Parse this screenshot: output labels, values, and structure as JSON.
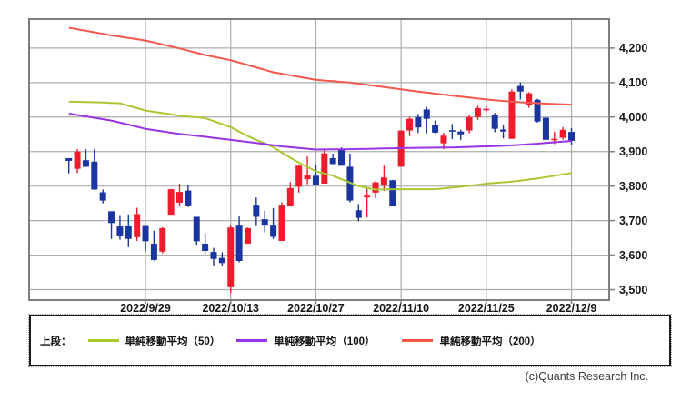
{
  "chart_data": {
    "type": "candlestick",
    "title": "",
    "y_axis": {
      "ticks": [
        "4,200",
        "4,100",
        "4,000",
        "3,900",
        "3,800",
        "3,700",
        "3,600",
        "3,500"
      ],
      "values": [
        4200,
        4100,
        4000,
        3900,
        3800,
        3700,
        3600,
        3500
      ],
      "range": [
        3468,
        4282
      ],
      "grid": true
    },
    "x_axis": {
      "ticks": [
        {
          "label": "2022/9/29",
          "index": 9
        },
        {
          "label": "2022/10/13",
          "index": 19
        },
        {
          "label": "2022/10/27",
          "index": 29
        },
        {
          "label": "2022/11/10",
          "index": 39
        },
        {
          "label": "2022/11/25",
          "index": 49
        },
        {
          "label": "2022/12/9",
          "index": 59
        }
      ],
      "grid": true
    },
    "candles": {
      "dates": [
        "2022/9/16",
        "2022/9/19",
        "2022/9/20",
        "2022/9/21",
        "2022/9/22",
        "2022/9/23",
        "2022/9/26",
        "2022/9/27",
        "2022/9/28",
        "2022/9/29",
        "2022/9/30",
        "2022/10/3",
        "2022/10/4",
        "2022/10/5",
        "2022/10/6",
        "2022/10/7",
        "2022/10/10",
        "2022/10/11",
        "2022/10/12",
        "2022/10/13",
        "2022/10/14",
        "2022/10/17",
        "2022/10/18",
        "2022/10/19",
        "2022/10/20",
        "2022/10/21",
        "2022/10/24",
        "2022/10/25",
        "2022/10/26",
        "2022/10/27",
        "2022/10/28",
        "2022/10/31",
        "2022/11/1",
        "2022/11/2",
        "2022/11/3",
        "2022/11/4",
        "2022/11/7",
        "2022/11/8",
        "2022/11/9",
        "2022/11/10",
        "2022/11/11",
        "2022/11/14",
        "2022/11/15",
        "2022/11/16",
        "2022/11/17",
        "2022/11/18",
        "2022/11/21",
        "2022/11/22",
        "2022/11/23",
        "2022/11/25",
        "2022/11/28",
        "2022/11/29",
        "2022/11/30",
        "2022/12/1",
        "2022/12/2",
        "2022/12/5",
        "2022/12/6",
        "2022/12/7",
        "2022/12/8",
        "2022/12/9"
      ],
      "ohlc": [
        [
          3881,
          3881,
          3837,
          3873
        ],
        [
          3850,
          3907,
          3838,
          3900
        ],
        [
          3875,
          3907,
          3855,
          3856
        ],
        [
          3871,
          3907,
          3789,
          3790
        ],
        [
          3782,
          3790,
          3750,
          3758
        ],
        [
          3727,
          3727,
          3647,
          3693
        ],
        [
          3683,
          3716,
          3645,
          3655
        ],
        [
          3686,
          3718,
          3623,
          3647
        ],
        [
          3652,
          3737,
          3641,
          3719
        ],
        [
          3687,
          3687,
          3610,
          3640
        ],
        [
          3633,
          3671,
          3584,
          3586
        ],
        [
          3610,
          3681,
          3605,
          3678
        ],
        [
          3717,
          3791,
          3717,
          3791
        ],
        [
          3752,
          3807,
          3742,
          3783
        ],
        [
          3787,
          3804,
          3739,
          3744
        ],
        [
          3711,
          3711,
          3630,
          3640
        ],
        [
          3633,
          3662,
          3604,
          3612
        ],
        [
          3609,
          3621,
          3569,
          3589
        ],
        [
          3592,
          3608,
          3568,
          3577
        ],
        [
          3507,
          3688,
          3490,
          3680
        ],
        [
          3688,
          3712,
          3579,
          3583
        ],
        [
          3633,
          3680,
          3633,
          3678
        ],
        [
          3746,
          3767,
          3687,
          3711
        ],
        [
          3704,
          3728,
          3666,
          3688
        ],
        [
          3688,
          3736,
          3647,
          3653
        ],
        [
          3641,
          3753,
          3641,
          3746
        ],
        [
          3741,
          3811,
          3741,
          3794
        ],
        [
          3798,
          3862,
          3781,
          3859
        ],
        [
          3820,
          3886,
          3805,
          3833
        ],
        [
          3830,
          3860,
          3803,
          3803
        ],
        [
          3807,
          3905,
          3807,
          3895
        ],
        [
          3881,
          3894,
          3863,
          3864
        ],
        [
          3908,
          3912,
          3859,
          3859
        ],
        [
          3856,
          3894,
          3753,
          3758
        ],
        [
          3730,
          3748,
          3698,
          3708
        ],
        [
          3767,
          3796,
          3709,
          3772
        ],
        [
          3781,
          3814,
          3765,
          3811
        ],
        [
          3803,
          3859,
          3786,
          3825
        ],
        [
          3817,
          3818,
          3744,
          3741
        ],
        [
          3856,
          3961,
          3856,
          3961
        ],
        [
          3961,
          4001,
          3945,
          3995
        ],
        [
          4000,
          4009,
          3954,
          3970
        ],
        [
          4022,
          4029,
          3953,
          3995
        ],
        [
          3977,
          3990,
          3953,
          3955
        ],
        [
          3924,
          3954,
          3907,
          3946
        ],
        [
          3962,
          3980,
          3936,
          3958
        ],
        [
          3958,
          3963,
          3934,
          3950
        ],
        [
          3961,
          4006,
          3953,
          4000
        ],
        [
          4000,
          4033,
          3992,
          4026
        ],
        [
          4020,
          4034,
          4014,
          4024
        ],
        [
          4005,
          4012,
          3956,
          3966
        ],
        [
          3964,
          3977,
          3938,
          3958
        ],
        [
          3937,
          4080,
          3937,
          4074
        ],
        [
          4090,
          4100,
          4051,
          4074
        ],
        [
          4034,
          4072,
          4027,
          4069
        ],
        [
          4050,
          4053,
          3984,
          3987
        ],
        [
          3998,
          4001,
          3934,
          3934
        ],
        [
          3933,
          3957,
          3922,
          3937
        ],
        [
          3940,
          3971,
          3935,
          3963
        ],
        [
          3957,
          3968,
          3920,
          3931
        ]
      ]
    },
    "moving_averages": [
      {
        "name": "単純移動平均（200）",
        "period": 200,
        "color": "#f7564b",
        "data_name": "sma200-line",
        "points": [
          [
            0,
            4259
          ],
          [
            5,
            4237
          ],
          [
            9,
            4222
          ],
          [
            13,
            4199
          ],
          [
            16,
            4180
          ],
          [
            19,
            4165
          ],
          [
            24,
            4130
          ],
          [
            29,
            4108
          ],
          [
            33,
            4100
          ],
          [
            37,
            4087
          ],
          [
            41,
            4074
          ],
          [
            45,
            4062
          ],
          [
            49,
            4051
          ],
          [
            53,
            4043
          ],
          [
            56,
            4039
          ],
          [
            59,
            4036
          ]
        ]
      },
      {
        "name": "単純移動平均（50）",
        "period": 50,
        "color": "#a8c832",
        "data_name": "sma50-line",
        "points": [
          [
            0,
            4045
          ],
          [
            3,
            4043
          ],
          [
            6,
            4040
          ],
          [
            9,
            4019
          ],
          [
            13,
            4004
          ],
          [
            16,
            3997
          ],
          [
            19,
            3971
          ],
          [
            21,
            3945
          ],
          [
            22,
            3934
          ],
          [
            24,
            3913
          ],
          [
            25,
            3897
          ],
          [
            27,
            3868
          ],
          [
            29,
            3843
          ],
          [
            31,
            3830
          ],
          [
            34,
            3800
          ],
          [
            36,
            3790
          ],
          [
            39,
            3791
          ],
          [
            43,
            3791
          ],
          [
            46,
            3798
          ],
          [
            49,
            3807
          ],
          [
            52,
            3813
          ],
          [
            55,
            3822
          ],
          [
            57,
            3830
          ],
          [
            59,
            3838
          ]
        ]
      },
      {
        "name": "単純移動平均（100）",
        "period": 100,
        "color": "#9933e6",
        "data_name": "sma100-line",
        "points": [
          [
            0,
            4010
          ],
          [
            5,
            3990
          ],
          [
            9,
            3966
          ],
          [
            13,
            3951
          ],
          [
            16,
            3943
          ],
          [
            19,
            3934
          ],
          [
            22,
            3925
          ],
          [
            25,
            3915
          ],
          [
            29,
            3906
          ],
          [
            33,
            3907
          ],
          [
            37,
            3909
          ],
          [
            41,
            3911
          ],
          [
            45,
            3912
          ],
          [
            49,
            3915
          ],
          [
            52,
            3918
          ],
          [
            55,
            3923
          ],
          [
            57,
            3927
          ],
          [
            59,
            3931
          ]
        ]
      }
    ],
    "colors": {
      "up": "#ee1c2c",
      "down": "#1a35a0",
      "grid": "#adadad",
      "border": "#7e7e7e",
      "tick_text": "#151515"
    },
    "legend_position": "bottom"
  },
  "legend": {
    "prefix": "上段：",
    "items": [
      {
        "label": "単純移動平均（50）",
        "color": "#a8c832"
      },
      {
        "label": "単純移動平均（100）",
        "color": "#9933e6"
      },
      {
        "label": "単純移動平均（200）",
        "color": "#f7564b"
      }
    ]
  },
  "footer": {
    "copyright": "(c)Quants Research Inc."
  }
}
